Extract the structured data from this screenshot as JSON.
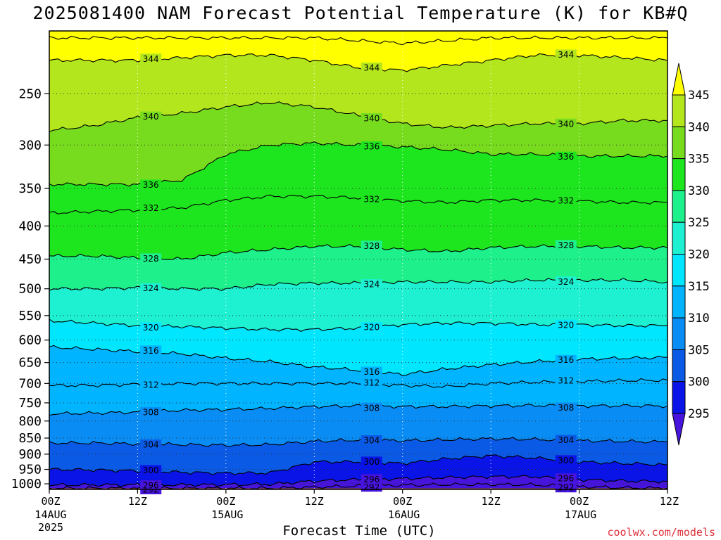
{
  "title": "2025081400 NAM Forecast Potential Temperature (K) for KB#Q",
  "chart_data": {
    "type": "heatmap",
    "title": "2025081400 NAM Forecast Potential Temperature (K) for KB#Q",
    "xlabel": "Forecast Time (UTC)",
    "ylabel": "",
    "x_ticks": [
      {
        "hour": 0,
        "label": "00Z",
        "sub1": "14AUG",
        "sub2": "2025"
      },
      {
        "hour": 12,
        "label": "12Z",
        "sub1": "",
        "sub2": ""
      },
      {
        "hour": 24,
        "label": "00Z",
        "sub1": "15AUG",
        "sub2": ""
      },
      {
        "hour": 36,
        "label": "12Z",
        "sub1": "",
        "sub2": ""
      },
      {
        "hour": 48,
        "label": "00Z",
        "sub1": "16AUG",
        "sub2": ""
      },
      {
        "hour": 60,
        "label": "12Z",
        "sub1": "",
        "sub2": ""
      },
      {
        "hour": 72,
        "label": "00Z",
        "sub1": "17AUG",
        "sub2": ""
      },
      {
        "hour": 84,
        "label": "12Z",
        "sub1": "",
        "sub2": ""
      }
    ],
    "xlim": [
      0,
      84
    ],
    "y_ticks": [
      250,
      300,
      350,
      400,
      450,
      500,
      550,
      600,
      650,
      700,
      750,
      800,
      850,
      900,
      950,
      1000
    ],
    "ylim": [
      1020,
      200
    ],
    "y_scale": "log-pressure",
    "grid": true,
    "colorbar": {
      "labels": [
        345,
        340,
        335,
        330,
        325,
        320,
        315,
        310,
        305,
        300,
        295
      ],
      "levels": [
        {
          "lo": 345,
          "hi": 350,
          "color": "#ffff00"
        },
        {
          "lo": 340,
          "hi": 345,
          "color": "#b4e61e"
        },
        {
          "lo": 335,
          "hi": 340,
          "color": "#78dc1e"
        },
        {
          "lo": 330,
          "hi": 335,
          "color": "#1ee61e"
        },
        {
          "lo": 325,
          "hi": 330,
          "color": "#1ef08c"
        },
        {
          "lo": 320,
          "hi": 325,
          "color": "#1ef0d2"
        },
        {
          "lo": 315,
          "hi": 320,
          "color": "#00e6ff"
        },
        {
          "lo": 310,
          "hi": 315,
          "color": "#00b4ff"
        },
        {
          "lo": 305,
          "hi": 310,
          "color": "#0a8cf5"
        },
        {
          "lo": 300,
          "hi": 305,
          "color": "#0a5ae6"
        },
        {
          "lo": 295,
          "hi": 300,
          "color": "#0a14e6"
        },
        {
          "lo": 290,
          "hi": 295,
          "color": "#4614dc"
        }
      ]
    },
    "ground_color": "#a0522d",
    "hours": [
      0,
      6,
      12,
      18,
      24,
      30,
      36,
      42,
      48,
      54,
      60,
      66,
      72,
      78,
      84
    ],
    "isentropes": [
      {
        "theta": 292,
        "pressure": [
          1016,
          1016,
          1016,
          1016,
          1016,
          1016,
          1012,
          1008,
          1005,
          1003,
          1002,
          1004,
          1010,
          1014,
          1016
        ]
      },
      {
        "theta": 296,
        "pressure": [
          1005,
          1004,
          1004,
          1004,
          1003,
          1002,
          990,
          985,
          982,
          978,
          975,
          975,
          985,
          990,
          992
        ]
      },
      {
        "theta": 300,
        "pressure": [
          950,
          952,
          955,
          960,
          963,
          962,
          925,
          925,
          930,
          915,
          905,
          912,
          925,
          930,
          935
        ]
      },
      {
        "theta": 304,
        "pressure": [
          865,
          865,
          868,
          870,
          872,
          870,
          860,
          856,
          858,
          855,
          852,
          854,
          858,
          860,
          862
        ]
      },
      {
        "theta": 308,
        "pressure": [
          780,
          778,
          775,
          770,
          768,
          765,
          760,
          758,
          760,
          760,
          758,
          757,
          758,
          758,
          758
        ]
      },
      {
        "theta": 312,
        "pressure": [
          705,
          705,
          702,
          700,
          700,
          700,
          700,
          700,
          705,
          708,
          700,
          697,
          695,
          693,
          692
        ]
      },
      {
        "theta": 316,
        "pressure": [
          615,
          620,
          625,
          630,
          640,
          648,
          660,
          668,
          678,
          665,
          655,
          648,
          642,
          640,
          638
        ]
      },
      {
        "theta": 320,
        "pressure": [
          560,
          565,
          570,
          572,
          575,
          578,
          578,
          575,
          568,
          565,
          565,
          568,
          568,
          570,
          570
        ]
      },
      {
        "theta": 324,
        "pressure": [
          500,
          500,
          498,
          500,
          500,
          492,
          490,
          490,
          488,
          488,
          488,
          485,
          485,
          485,
          488
        ]
      },
      {
        "theta": 328,
        "pressure": [
          445,
          445,
          448,
          450,
          440,
          435,
          430,
          430,
          435,
          438,
          432,
          430,
          430,
          432,
          432
        ]
      },
      {
        "theta": 332,
        "pressure": [
          382,
          380,
          378,
          375,
          365,
          360,
          360,
          362,
          366,
          368,
          365,
          365,
          366,
          368,
          368
        ]
      },
      {
        "theta": 336,
        "pressure": [
          345,
          345,
          345,
          340,
          310,
          300,
          298,
          300,
          302,
          305,
          310,
          310,
          312,
          312,
          312
        ]
      },
      {
        "theta": 340,
        "pressure": [
          285,
          280,
          272,
          268,
          262,
          258,
          262,
          270,
          278,
          282,
          280,
          278,
          278,
          275,
          275
        ]
      },
      {
        "theta": 344,
        "pressure": [
          222,
          222,
          222,
          220,
          218,
          218,
          222,
          228,
          230,
          226,
          222,
          218,
          218,
          220,
          222
        ]
      },
      {
        "theta": 348,
        "pressure": [
          205,
          205,
          205,
          205,
          205,
          205,
          205,
          207,
          209,
          207,
          205,
          205,
          205,
          205,
          205
        ]
      }
    ]
  },
  "footer": {
    "xlabel": "Forecast Time (UTC)",
    "credit": "coolwx.com/models"
  }
}
